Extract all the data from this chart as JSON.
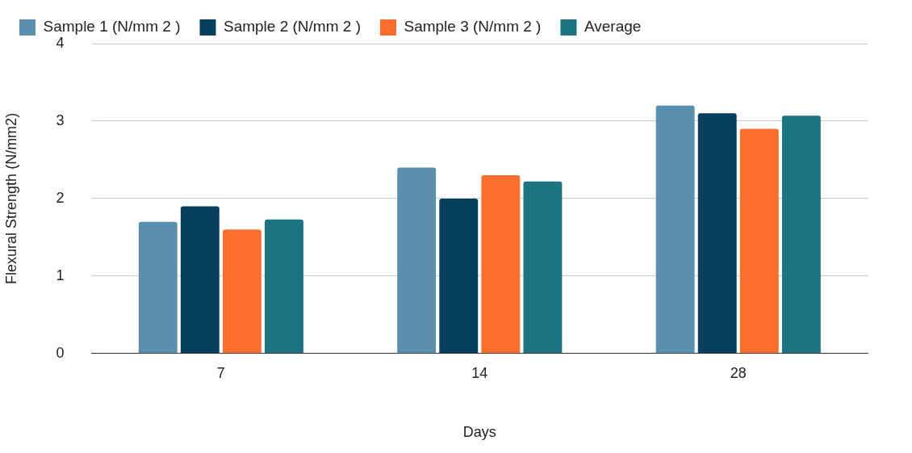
{
  "chart_data": {
    "type": "bar",
    "xlabel": "Days",
    "ylabel": "Flexural Strength (N/mm2)",
    "categories": [
      "7",
      "14",
      "28"
    ],
    "series": [
      {
        "name": "Sample 1 (N/mm 2 )",
        "color": "#5b8fae",
        "values": [
          1.7,
          2.4,
          3.2
        ]
      },
      {
        "name": "Sample 2 (N/mm 2 )",
        "color": "#073f5c",
        "values": [
          1.9,
          2.0,
          3.1
        ]
      },
      {
        "name": "Sample 3 (N/mm 2 )",
        "color": "#fb6f2e",
        "values": [
          1.6,
          2.3,
          2.9
        ]
      },
      {
        "name": "Average",
        "color": "#1d7481",
        "values": [
          1.73,
          2.22,
          3.07
        ]
      }
    ],
    "ylim": [
      0,
      4
    ],
    "yticks": [
      0,
      1,
      2,
      3,
      4
    ],
    "grid": "y",
    "legend": "top left"
  }
}
